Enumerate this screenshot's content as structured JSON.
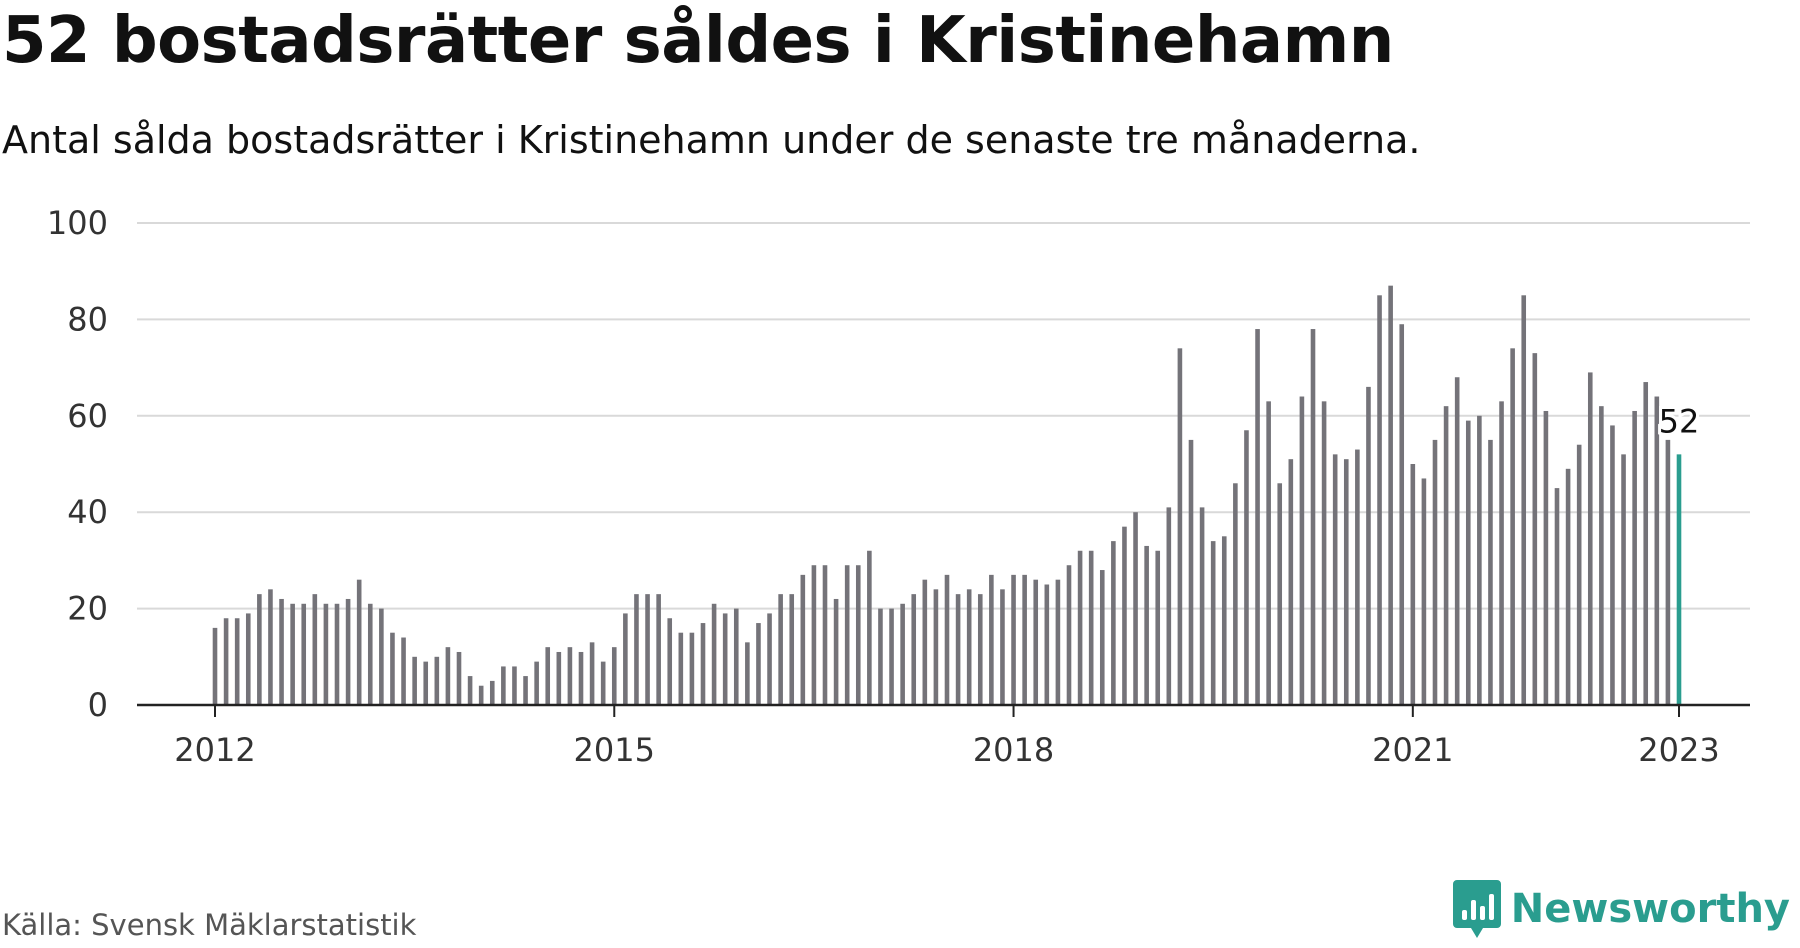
{
  "title": "52 bostadsrätter såldes i Kristinehamn",
  "subtitle": "Antal sålda bostadsrätter i Kristinehamn under de senaste tre månaderna.",
  "source": "Källa: Svensk Mäklarstatistik",
  "brand": {
    "name": "Newsworthy",
    "icon": "newsworthy-logo-icon"
  },
  "colors": {
    "bar": "#747379",
    "highlight": "#2a9d8f",
    "grid": "#d9d9d9",
    "axis": "#222222"
  },
  "chart_data": {
    "type": "bar",
    "x_start": "2012-01",
    "x_end": "2023-01",
    "values": [
      16,
      18,
      18,
      19,
      23,
      24,
      22,
      21,
      21,
      23,
      21,
      21,
      22,
      26,
      21,
      20,
      15,
      14,
      10,
      9,
      10,
      12,
      11,
      6,
      4,
      5,
      8,
      8,
      6,
      9,
      12,
      11,
      12,
      11,
      13,
      9,
      12,
      19,
      23,
      23,
      23,
      18,
      15,
      15,
      17,
      21,
      19,
      20,
      13,
      17,
      19,
      23,
      23,
      27,
      29,
      29,
      22,
      29,
      29,
      32,
      20,
      20,
      21,
      23,
      26,
      24,
      27,
      23,
      24,
      23,
      27,
      24,
      27,
      27,
      26,
      25,
      26,
      29,
      32,
      32,
      28,
      34,
      37,
      40,
      33,
      32,
      41,
      74,
      55,
      41,
      34,
      35,
      46,
      57,
      78,
      63,
      46,
      51,
      64,
      78,
      63,
      52,
      51,
      53,
      66,
      85,
      87,
      79,
      50,
      47,
      55,
      62,
      68,
      59,
      60,
      55,
      63,
      74,
      85,
      73,
      61,
      45,
      49,
      54,
      69,
      62,
      58,
      52,
      61,
      67,
      64,
      55,
      52
    ],
    "highlight_last": true,
    "data_label": "52",
    "ylim": [
      0,
      100
    ],
    "yticks": [
      "0",
      "20",
      "40",
      "60",
      "80",
      "100"
    ],
    "xticks": [
      {
        "label": "2012",
        "x": "2012-01"
      },
      {
        "label": "2015",
        "x": "2015-01"
      },
      {
        "label": "2018",
        "x": "2018-01"
      },
      {
        "label": "2021",
        "x": "2021-01"
      },
      {
        "label": "2023",
        "x": "2023-01"
      }
    ],
    "grid": true
  }
}
